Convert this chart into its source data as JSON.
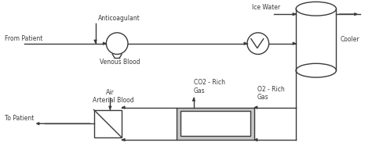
{
  "bg_color": "#ffffff",
  "line_color": "#3a3a3a",
  "lw": 1.0,
  "labels": {
    "anticoagulant": "Anticoagulant",
    "from_patient": "From Patient",
    "venous_blood": "Venous Blood",
    "ice_water": "Ice Water",
    "cooler": "Cooler",
    "arterial_blood": "Arterial Blood",
    "to_patient": "To Patient",
    "air": "Air",
    "co2_rich_gas": "CO2 - Rich\nGas",
    "o2_rich_gas": "O2 - Rich\nGas"
  },
  "fontsize": 5.5
}
